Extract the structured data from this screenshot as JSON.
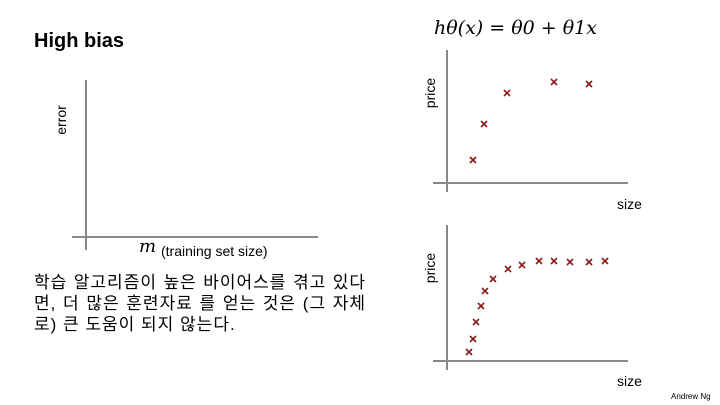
{
  "slide": {
    "title": "High bias",
    "formula": "hθ(x) = θ0 + θ1x",
    "learning_curve": {
      "ylabel": "error",
      "xlabel_symbol": "m",
      "xlabel_text": "(training set size)"
    },
    "top_plot": {
      "ylabel": "price",
      "xlabel": "size"
    },
    "bottom_plot": {
      "ylabel": "price",
      "xlabel": "size"
    },
    "note": "학습 알고리즘이 높은 바이어스를 겪고 있다면, 더 많은 훈련자료 를 얻는 것은 (그 자체로) 큰 도움이 되지 않는다.",
    "credit": "Andrew Ng"
  },
  "colors": {
    "axis": "#888888",
    "marker": "#8b1a1a"
  }
}
